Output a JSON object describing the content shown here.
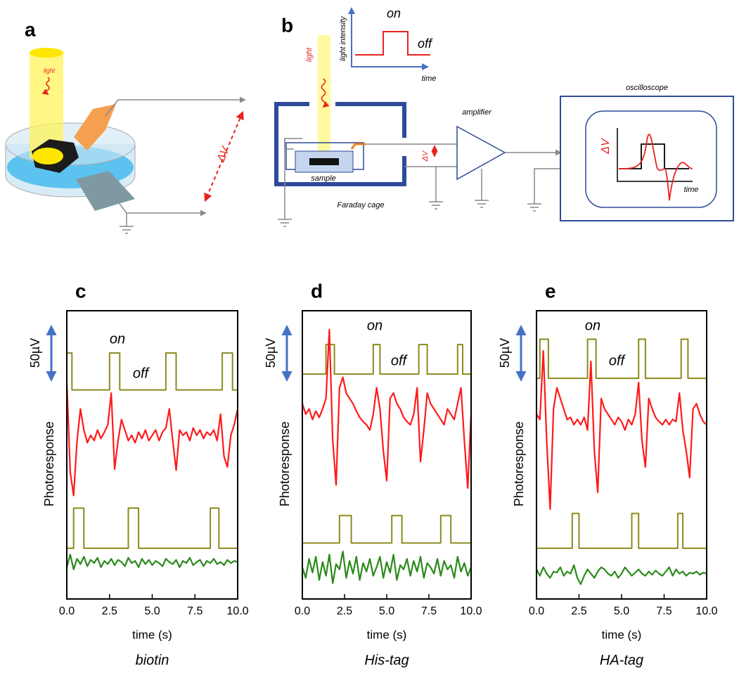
{
  "diagram_a": {
    "label": "a",
    "light": "light",
    "delta_v": "ΔV"
  },
  "diagram_b": {
    "label": "b",
    "light": "light",
    "light_intensity": "light intensity",
    "on": "on",
    "off": "off",
    "time": "time",
    "sample": "sample",
    "faraday_cage": "Faraday cage",
    "delta_v": "ΔV",
    "amplifier": "amplifier",
    "oscilloscope": "oscilloscope",
    "scope_delta_v": "ΔV",
    "scope_time": "time"
  },
  "chart_data": [
    {
      "type": "line",
      "panel_label": "c",
      "title": "biotin",
      "xlabel": "time (s)",
      "ylabel": "Photoresponse",
      "scale_bar": "50µV",
      "annotations": [
        "on",
        "off"
      ],
      "xlim": [
        0,
        10
      ],
      "xticks": [
        {
          "value": 0,
          "label": "0.0"
        },
        2.5,
        {
          "value": 5,
          "label": "5.0"
        },
        7.5,
        {
          "value": 10,
          "label": "10.0"
        }
      ],
      "ylim": [
        0,
        273
      ],
      "x": [
        0,
        0.2,
        0.4,
        0.6,
        0.8,
        1,
        1.2,
        1.4,
        1.6,
        1.8,
        2,
        2.2,
        2.4,
        2.6,
        2.8,
        3,
        3.2,
        3.4,
        3.6,
        3.8,
        4,
        4.2,
        4.4,
        4.6,
        4.8,
        5,
        5.2,
        5.4,
        5.6,
        5.8,
        6,
        6.2,
        6.4,
        6.6,
        6.8,
        7,
        7.2,
        7.4,
        7.6,
        7.8,
        8,
        8.2,
        8.4,
        8.6,
        8.8,
        9,
        9.2,
        9.4,
        9.6,
        9.8,
        10
      ],
      "series": [
        {
          "color": "#8c8a1c",
          "x": [
            0,
            0,
            0.3,
            0.3,
            2.5,
            2.5,
            3.1,
            3.1,
            5.8,
            5.8,
            6.4,
            6.4,
            9.1,
            9.1,
            9.7,
            9.7,
            10
          ],
          "values": [
            198,
            233,
            233,
            198,
            198,
            233,
            233,
            198,
            198,
            233,
            233,
            198,
            198,
            233,
            233,
            198,
            198
          ]
        },
        {
          "color": "#ff1a1a",
          "values": [
            205,
            120,
            98,
            150,
            180,
            160,
            148,
            155,
            150,
            160,
            152,
            158,
            165,
            195,
            123,
            150,
            170,
            160,
            150,
            155,
            148,
            158,
            152,
            160,
            150,
            155,
            160,
            150,
            158,
            162,
            180,
            150,
            122,
            160,
            155,
            158,
            150,
            162,
            155,
            160,
            152,
            158,
            155,
            160,
            150,
            175,
            135,
            125,
            155,
            165,
            180
          ]
        },
        {
          "color": "#8c8a1c",
          "x": [
            0,
            0.4,
            0.4,
            1,
            1,
            3.6,
            3.6,
            4.2,
            4.2,
            8.4,
            8.4,
            8.9,
            8.9,
            10
          ],
          "values": [
            48,
            48,
            86,
            86,
            48,
            48,
            86,
            86,
            48,
            48,
            86,
            86,
            48,
            48
          ]
        },
        {
          "color": "#2a8a1a",
          "values": [
            30,
            42,
            28,
            38,
            33,
            40,
            31,
            37,
            34,
            39,
            30,
            36,
            33,
            38,
            32,
            37,
            35,
            31,
            39,
            34,
            36,
            30,
            38,
            33,
            37,
            32,
            36,
            34,
            31,
            38,
            35,
            33,
            37,
            30,
            36,
            34,
            39,
            32,
            35,
            37,
            31,
            36,
            34,
            38,
            33,
            35,
            32,
            37,
            34,
            36,
            35
          ]
        }
      ]
    },
    {
      "type": "line",
      "panel_label": "d",
      "title": "His-tag",
      "xlabel": "time (s)",
      "ylabel": "Photoresponse",
      "scale_bar": "50µV",
      "annotations": [
        "on",
        "off"
      ],
      "xlim": [
        0,
        10
      ],
      "xticks": [
        {
          "value": 0,
          "label": "0.0"
        },
        2.5,
        {
          "value": 5,
          "label": "5.0"
        },
        7.5,
        {
          "value": 10,
          "label": "10.0"
        }
      ],
      "ylim": [
        0,
        273
      ],
      "x": [
        0,
        0.2,
        0.4,
        0.6,
        0.8,
        1,
        1.2,
        1.4,
        1.6,
        1.8,
        2,
        2.2,
        2.4,
        2.6,
        2.8,
        3,
        3.2,
        3.4,
        3.6,
        3.8,
        4,
        4.2,
        4.4,
        4.6,
        4.8,
        5,
        5.2,
        5.4,
        5.6,
        5.8,
        6,
        6.2,
        6.4,
        6.6,
        6.8,
        7,
        7.2,
        7.4,
        7.6,
        7.8,
        8,
        8.2,
        8.4,
        8.6,
        8.8,
        9,
        9.2,
        9.4,
        9.6,
        9.8,
        10
      ],
      "series": [
        {
          "color": "#8c8a1c",
          "x": [
            0,
            1.4,
            1.4,
            1.9,
            1.9,
            4.2,
            4.2,
            4.6,
            4.6,
            6.9,
            6.9,
            7.4,
            7.4,
            9.2,
            9.2,
            9.5,
            9.5,
            10
          ],
          "values": [
            213,
            213,
            241,
            241,
            213,
            213,
            241,
            241,
            213,
            213,
            241,
            241,
            213,
            213,
            241,
            241,
            213,
            213
          ]
        },
        {
          "color": "#ff1a1a",
          "values": [
            185,
            175,
            180,
            170,
            178,
            172,
            180,
            190,
            255,
            150,
            108,
            200,
            210,
            195,
            190,
            185,
            178,
            172,
            168,
            165,
            160,
            175,
            200,
            180,
            140,
            112,
            190,
            195,
            185,
            180,
            172,
            168,
            165,
            175,
            200,
            130,
            160,
            195,
            185,
            180,
            175,
            170,
            165,
            180,
            175,
            170,
            185,
            200,
            150,
            105,
            175
          ]
        },
        {
          "color": "#8c8a1c",
          "x": [
            0,
            2.2,
            2.2,
            2.9,
            2.9,
            5.3,
            5.3,
            5.9,
            5.9,
            8.2,
            8.2,
            8.8,
            8.8,
            10
          ],
          "values": [
            53,
            53,
            79,
            79,
            53,
            53,
            79,
            79,
            53,
            53,
            79,
            79,
            53,
            53
          ]
        },
        {
          "color": "#2a8a1a",
          "values": [
            30,
            20,
            38,
            25,
            40,
            18,
            35,
            22,
            42,
            15,
            33,
            28,
            45,
            20,
            36,
            24,
            40,
            18,
            34,
            26,
            38,
            22,
            30,
            40,
            20,
            35,
            25,
            42,
            18,
            32,
            28,
            38,
            22,
            36,
            26,
            40,
            20,
            34,
            30,
            24,
            38,
            22,
            36,
            28,
            32,
            20,
            40,
            26,
            34,
            22,
            30
          ]
        }
      ]
    },
    {
      "type": "line",
      "panel_label": "e",
      "title": "HA-tag",
      "xlabel": "time (s)",
      "ylabel": "Photoresponse",
      "scale_bar": "50µV",
      "annotations": [
        "on",
        "off"
      ],
      "xlim": [
        0,
        10
      ],
      "xticks": [
        {
          "value": 0,
          "label": "0.0"
        },
        2.5,
        {
          "value": 5,
          "label": "5.0"
        },
        7.5,
        {
          "value": 10,
          "label": "10.0"
        }
      ],
      "ylim": [
        0,
        273
      ],
      "x": [
        0,
        0.2,
        0.4,
        0.6,
        0.8,
        1,
        1.2,
        1.4,
        1.6,
        1.8,
        2,
        2.2,
        2.4,
        2.6,
        2.8,
        3,
        3.2,
        3.4,
        3.6,
        3.8,
        4,
        4.2,
        4.4,
        4.6,
        4.8,
        5,
        5.2,
        5.4,
        5.6,
        5.8,
        6,
        6.2,
        6.4,
        6.6,
        6.8,
        7,
        7.2,
        7.4,
        7.6,
        7.8,
        8,
        8.2,
        8.4,
        8.6,
        8.8,
        9,
        9.2,
        9.4,
        9.6,
        9.8,
        10
      ],
      "series": [
        {
          "color": "#8c8a1c",
          "x": [
            0,
            0.2,
            0.2,
            0.7,
            0.7,
            3,
            3,
            3.5,
            3.5,
            6,
            6,
            6.4,
            6.4,
            8.5,
            8.5,
            8.9,
            8.9,
            10
          ],
          "values": [
            209,
            209,
            246,
            246,
            209,
            209,
            246,
            246,
            209,
            209,
            246,
            246,
            209,
            209,
            246,
            246,
            209,
            209
          ]
        },
        {
          "color": "#ff1a1a",
          "values": [
            175,
            170,
            235,
            150,
            85,
            180,
            200,
            190,
            180,
            170,
            172,
            165,
            170,
            165,
            172,
            160,
            225,
            140,
            101,
            190,
            180,
            175,
            170,
            165,
            172,
            168,
            160,
            170,
            165,
            175,
            205,
            150,
            125,
            190,
            180,
            172,
            168,
            165,
            170,
            165,
            170,
            168,
            195,
            160,
            140,
            115,
            180,
            185,
            175,
            168,
            165
          ]
        },
        {
          "color": "#8c8a1c",
          "x": [
            0,
            2.1,
            2.1,
            2.5,
            2.5,
            5.6,
            5.6,
            6,
            6,
            8.3,
            8.3,
            8.6,
            8.6,
            10
          ],
          "values": [
            48,
            48,
            81,
            81,
            48,
            48,
            81,
            81,
            48,
            48,
            81,
            81,
            48,
            48
          ]
        },
        {
          "color": "#2a8a1a",
          "values": [
            28,
            22,
            30,
            24,
            20,
            26,
            25,
            30,
            22,
            26,
            24,
            32,
            20,
            14,
            22,
            28,
            24,
            20,
            26,
            30,
            28,
            24,
            22,
            26,
            20,
            24,
            30,
            26,
            22,
            25,
            28,
            24,
            22,
            26,
            23,
            27,
            24,
            22,
            26,
            30,
            22,
            28,
            24,
            26,
            22,
            25,
            24,
            26,
            23,
            25,
            24
          ]
        }
      ]
    }
  ]
}
